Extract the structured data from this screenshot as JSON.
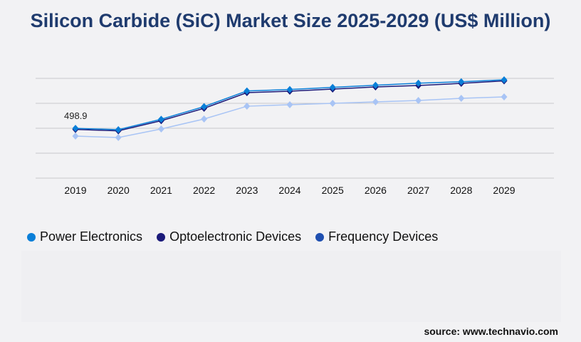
{
  "chart_data": {
    "type": "line",
    "title": "Silicon Carbide (SiC) Market Size 2025-2029 (US$ Million)",
    "xlabel": "",
    "ylabel": "",
    "ylim": [
      0,
      1000
    ],
    "grid": true,
    "legend_position": "bottom-left",
    "categories": [
      "2019",
      "2020",
      "2021",
      "2022",
      "2023",
      "2024",
      "2025",
      "2026",
      "2027",
      "2028",
      "2029"
    ],
    "series": [
      {
        "name": "Power Electronics",
        "color": "#0a7fd8",
        "marker_color": "#0a7fd8",
        "values": [
          498.9,
          486,
          590,
          717,
          874,
          888,
          910,
          931,
          952,
          966,
          986
        ]
      },
      {
        "name": "Optoelectronic Devices",
        "color": "#1b1a7a",
        "marker_color": "#1b1a7a",
        "values": [
          488,
          474,
          576,
          700,
          857,
          871,
          893,
          914,
          929,
          950,
          975
        ]
      },
      {
        "name": "Frequency Devices",
        "color": "#a8c4f5",
        "marker_color": "#1f4fb0",
        "values": [
          421,
          407,
          493,
          593,
          721,
          736,
          750,
          764,
          779,
          800,
          814
        ]
      }
    ],
    "annotations": [
      {
        "series": "Power Electronics",
        "category": "2019",
        "text": "498.9"
      }
    ]
  },
  "source": "source: www.technavio.com"
}
